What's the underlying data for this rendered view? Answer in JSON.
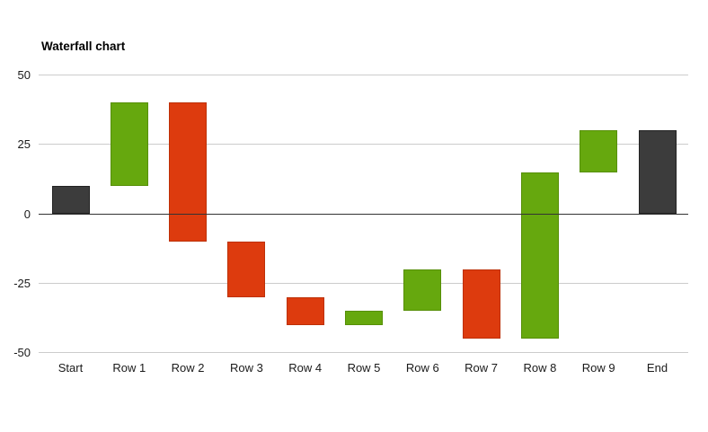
{
  "chart_data": {
    "type": "waterfall",
    "title": "Waterfall chart",
    "categories": [
      "Start",
      "Row 1",
      "Row 2",
      "Row 3",
      "Row 4",
      "Row 5",
      "Row 6",
      "Row 7",
      "Row 8",
      "Row 9",
      "End"
    ],
    "steps": [
      {
        "label": "Start",
        "from": 0,
        "to": 10,
        "delta": 10,
        "role": "total"
      },
      {
        "label": "Row 1",
        "from": 10,
        "to": 40,
        "delta": 30,
        "role": "increase"
      },
      {
        "label": "Row 2",
        "from": 40,
        "to": -10,
        "delta": -50,
        "role": "decrease"
      },
      {
        "label": "Row 3",
        "from": -10,
        "to": -30,
        "delta": -20,
        "role": "decrease"
      },
      {
        "label": "Row 4",
        "from": -30,
        "to": -40,
        "delta": -10,
        "role": "decrease"
      },
      {
        "label": "Row 5",
        "from": -40,
        "to": -35,
        "delta": 5,
        "role": "increase"
      },
      {
        "label": "Row 6",
        "from": -35,
        "to": -20,
        "delta": 15,
        "role": "increase"
      },
      {
        "label": "Row 7",
        "from": -20,
        "to": -45,
        "delta": -25,
        "role": "decrease"
      },
      {
        "label": "Row 8",
        "from": -45,
        "to": 15,
        "delta": 60,
        "role": "increase"
      },
      {
        "label": "Row 9",
        "from": 15,
        "to": 30,
        "delta": 15,
        "role": "increase"
      },
      {
        "label": "End",
        "from": 0,
        "to": 30,
        "delta": 30,
        "role": "total"
      }
    ],
    "ylim": [
      -50,
      50
    ],
    "yticks": [
      50,
      25,
      0,
      -25,
      -50
    ],
    "ytick_labels": [
      "50",
      "25",
      "0",
      "-25",
      "-50"
    ],
    "grid": true,
    "legend": "none",
    "colors": {
      "increase": {
        "fill": "#66a80e",
        "stroke": "#568f07"
      },
      "decrease": {
        "fill": "#dd3b0e",
        "stroke": "#bd3007"
      },
      "total": {
        "fill": "#3c3c3c",
        "stroke": "#222222"
      },
      "gridline": "#cccccc",
      "zero_line": "#333333",
      "text": "#1a1a1a",
      "background": "#ffffff"
    }
  }
}
